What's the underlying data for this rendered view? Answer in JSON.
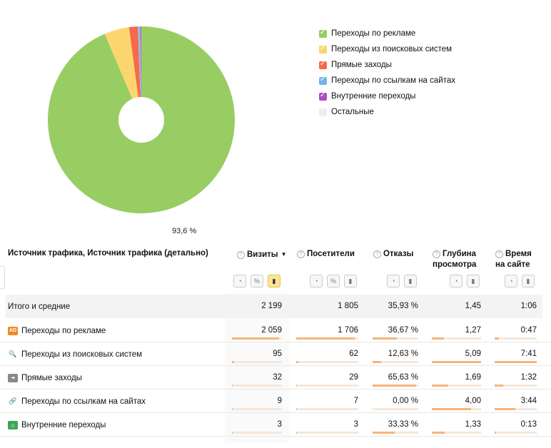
{
  "chart_data": {
    "type": "pie",
    "slices": [
      {
        "name": "Переходы по рекламе",
        "value": 93.6,
        "color": "#98cd63"
      },
      {
        "name": "Переходы из поисковых систем",
        "value": 4.3,
        "color": "#fdd56e"
      },
      {
        "name": "Прямые заходы",
        "value": 1.5,
        "color": "#f56a4a"
      },
      {
        "name": "Переходы по ссылкам на сайтах",
        "value": 0.4,
        "color": "#a0b8e4"
      },
      {
        "name": "Внутренние переходы",
        "value": 0.2,
        "color": "#b06cd6"
      }
    ],
    "slice_label": "93,6 %",
    "legend_position": "right"
  },
  "legend": [
    {
      "label": "Переходы по рекламе",
      "color": "#98cd63",
      "checked": true
    },
    {
      "label": "Переходы из поисковых систем",
      "color": "#fdd56e",
      "checked": true
    },
    {
      "label": "Прямые заходы",
      "color": "#f56a4a",
      "checked": true
    },
    {
      "label": "Переходы по ссылкам на сайтах",
      "color": "#6fb5ea",
      "checked": true
    },
    {
      "label": "Внутренние переходы",
      "color": "#b04dc4",
      "checked": true
    },
    {
      "label": "Остальные",
      "color": "#eeeeee",
      "checked": false
    }
  ],
  "table": {
    "dimension_header": "Источник трафика, Источник трафика (детально)",
    "columns": [
      {
        "label": "Визиты",
        "sorted": true,
        "sort_glyph": "▼"
      },
      {
        "label": "Посетители"
      },
      {
        "label": "Отказы"
      },
      {
        "label": "Глубина просмотра"
      },
      {
        "label": "Время на сайте"
      }
    ],
    "total": {
      "label": "Итого и средние",
      "values": [
        "2 199",
        "1 805",
        "35,93 %",
        "1,45",
        "1:06"
      ]
    },
    "rows": [
      {
        "label": "Переходы по рекламе",
        "icon": "ad-icon",
        "icon_text": "AD",
        "values": [
          "2 059",
          "1 706",
          "36,67 %",
          "1,27",
          "0:47"
        ],
        "bars": [
          0.94,
          0.945,
          0.53,
          0.25,
          0.11
        ]
      },
      {
        "label": "Переходы из поисковых систем",
        "icon": "search-icon",
        "values": [
          "95",
          "62",
          "12,63 %",
          "5,09",
          "7:41"
        ],
        "bars": [
          0.04,
          0.035,
          0.18,
          1.0,
          1.0
        ]
      },
      {
        "label": "Прямые заходы",
        "icon": "arrow-right-icon",
        "values": [
          "32",
          "29",
          "65,63 %",
          "1,69",
          "1:32"
        ],
        "bars": [
          0.015,
          0.016,
          0.95,
          0.33,
          0.2
        ]
      },
      {
        "label": "Переходы по ссылкам на сайтах",
        "icon": "link-icon",
        "values": [
          "9",
          "7",
          "0,00 %",
          "4,00",
          "3:44"
        ],
        "bars": [
          0.004,
          0.004,
          0.0,
          0.79,
          0.49
        ]
      },
      {
        "label": "Внутренние переходы",
        "icon": "home-icon",
        "values": [
          "3",
          "3",
          "33,33 %",
          "1,33",
          "0:13"
        ],
        "bars": [
          0.0015,
          0.002,
          0.48,
          0.26,
          0.03
        ]
      }
    ],
    "view_controls": {
      "pie": "pie-chart-icon",
      "percent": "%",
      "bars": "bar-chart-icon"
    }
  }
}
